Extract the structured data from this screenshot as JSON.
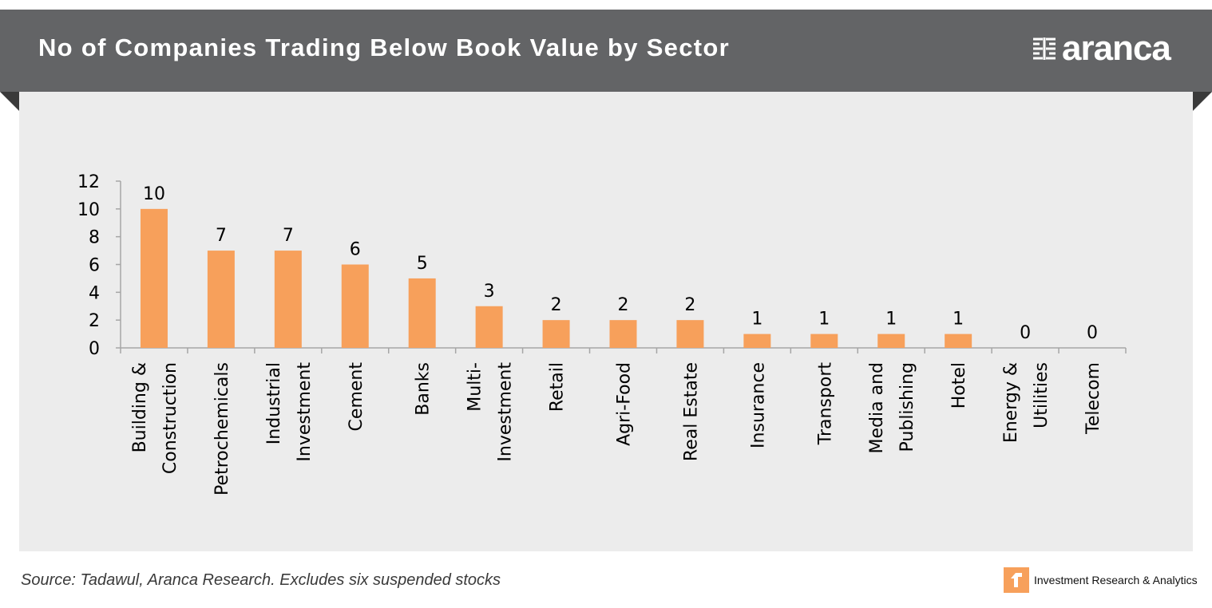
{
  "header": {
    "title": "No of Companies Trading Below Book Value by Sector",
    "brand_name": "aranca"
  },
  "footer": {
    "source": "Source: Tadawul, Aranca Research. Excludes six suspended stocks",
    "tagline": "Investment Research & Analytics"
  },
  "colors": {
    "bar": "#f7a05b",
    "banner": "#636466",
    "panel": "#ececec",
    "axis": "#a6a6a6"
  },
  "icons": {
    "brand": "aranca-maze-logo-icon",
    "footer": "aranca-footer-logo-icon"
  },
  "chart_data": {
    "type": "bar",
    "categories": [
      "Building & Construction",
      "Petrochemicals",
      "Industrial Investment",
      "Cement",
      "Banks",
      "Multi-Investment",
      "Retail",
      "Agri-Food",
      "Real Estate",
      "Insurance",
      "Transport",
      "Media and Publishing",
      "Hotel",
      "Energy & Utilities",
      "Telecom"
    ],
    "category_label_lines": [
      [
        "Building &",
        "Construction"
      ],
      [
        "Petrochemicals"
      ],
      [
        "Industrial",
        "Investment"
      ],
      [
        "Cement"
      ],
      [
        "Banks"
      ],
      [
        "Multi-",
        "Investment"
      ],
      [
        "Retail"
      ],
      [
        "Agri-Food"
      ],
      [
        "Real Estate"
      ],
      [
        "Insurance"
      ],
      [
        "Transport"
      ],
      [
        "Media and",
        "Publishing"
      ],
      [
        "Hotel"
      ],
      [
        "Energy &",
        "Utilities"
      ],
      [
        "Telecom"
      ]
    ],
    "values": [
      10,
      7,
      7,
      6,
      5,
      3,
      2,
      2,
      2,
      1,
      1,
      1,
      1,
      0,
      0
    ],
    "y_ticks": [
      "0",
      "2",
      "4",
      "6",
      "8",
      "10",
      "12"
    ],
    "ylim": [
      0,
      12
    ],
    "grid": false,
    "legend": "none",
    "data_labels": true
  }
}
